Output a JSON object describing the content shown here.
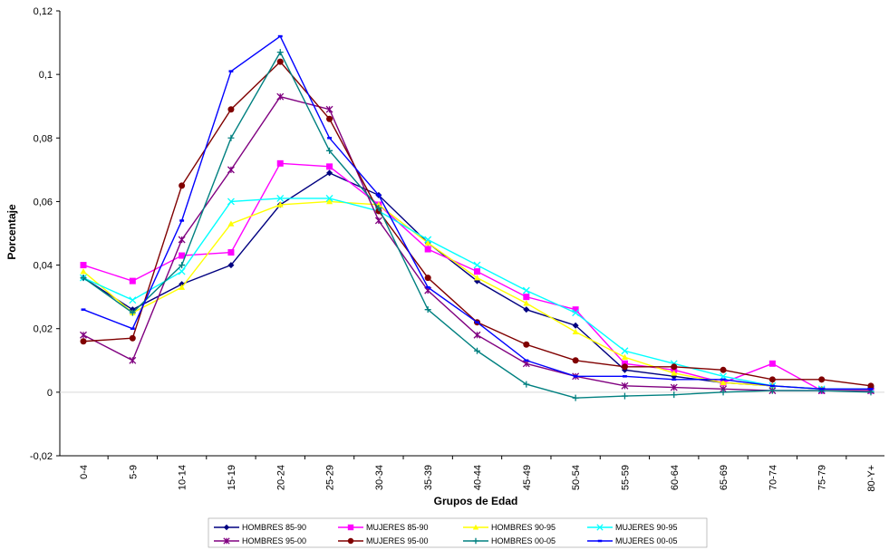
{
  "chart_data": {
    "type": "line",
    "xlabel": "Grupos de Edad",
    "ylabel": "Porcentaje",
    "ylim": [
      -0.02,
      0.12
    ],
    "yticks": [
      -0.02,
      0,
      0.02,
      0.04,
      0.06,
      0.08,
      0.1,
      0.12
    ],
    "ytick_labels": [
      "-0,02",
      "0",
      "0,02",
      "0,04",
      "0,06",
      "0,08",
      "0,1",
      "0,12"
    ],
    "grid": false,
    "legend_position": "bottom",
    "categories": [
      "0-4",
      "5-9",
      "10-14",
      "15-19",
      "20-24",
      "25-29",
      "30-34",
      "35-39",
      "40-44",
      "45-49",
      "50-54",
      "55-59",
      "60-64",
      "65-69",
      "70-74",
      "75-79",
      "80-Y+"
    ],
    "series": [
      {
        "name": "HOMBRES 85-90",
        "color": "#000080",
        "marker": "diamond",
        "values": [
          0.036,
          0.026,
          0.034,
          0.04,
          0.059,
          0.069,
          0.062,
          0.047,
          0.035,
          0.026,
          0.021,
          0.007,
          0.005,
          0.003,
          0.002,
          0.001,
          0.001
        ]
      },
      {
        "name": "MUJERES 85-90",
        "color": "#ff00ff",
        "marker": "square",
        "values": [
          0.04,
          0.035,
          0.043,
          0.044,
          0.072,
          0.071,
          0.059,
          0.045,
          0.038,
          0.03,
          0.026,
          0.009,
          0.007,
          0.003,
          0.009,
          0.0005,
          0.0005
        ]
      },
      {
        "name": "HOMBRES 90-95",
        "color": "#ffff00",
        "marker": "triangle",
        "values": [
          0.038,
          0.025,
          0.033,
          0.053,
          0.059,
          0.06,
          0.059,
          0.047,
          0.036,
          0.028,
          0.019,
          0.011,
          0.006,
          0.003,
          0.002,
          0.001,
          0.001
        ]
      },
      {
        "name": "MUJERES 90-95",
        "color": "#00ffff",
        "marker": "x",
        "values": [
          0.036,
          0.029,
          0.038,
          0.06,
          0.061,
          0.061,
          0.057,
          0.048,
          0.04,
          0.032,
          0.025,
          0.013,
          0.009,
          0.005,
          0.002,
          0.001,
          0.001
        ]
      },
      {
        "name": "HOMBRES 95-00",
        "color": "#800080",
        "marker": "star",
        "values": [
          0.018,
          0.01,
          0.048,
          0.07,
          0.093,
          0.089,
          0.054,
          0.032,
          0.018,
          0.009,
          0.005,
          0.002,
          0.0015,
          0.001,
          0.0005,
          0.0005,
          0.0005
        ]
      },
      {
        "name": "MUJERES 95-00",
        "color": "#800000",
        "marker": "circle",
        "values": [
          0.016,
          0.017,
          0.065,
          0.089,
          0.104,
          0.086,
          0.057,
          0.036,
          0.022,
          0.015,
          0.01,
          0.008,
          0.008,
          0.007,
          0.004,
          0.004,
          0.002
        ]
      },
      {
        "name": "HOMBRES 00-05",
        "color": "#008080",
        "marker": "plus",
        "values": [
          0.036,
          0.025,
          0.04,
          0.08,
          0.107,
          0.076,
          0.058,
          0.026,
          0.013,
          0.0025,
          -0.0018,
          -0.0012,
          -0.0008,
          0.0,
          0.0005,
          0.0005,
          0.0
        ]
      },
      {
        "name": "MUJERES 00-05",
        "color": "#0000ff",
        "marker": "dash",
        "values": [
          0.026,
          0.02,
          0.054,
          0.101,
          0.112,
          0.08,
          0.062,
          0.033,
          0.022,
          0.01,
          0.005,
          0.005,
          0.004,
          0.004,
          0.002,
          0.001,
          0.001
        ]
      }
    ]
  }
}
